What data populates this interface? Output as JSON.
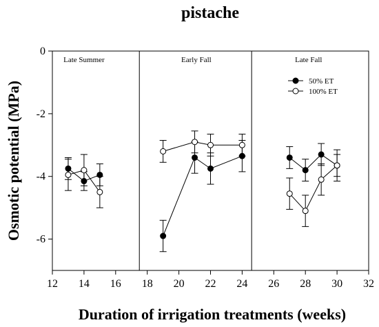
{
  "chart_data": {
    "type": "line",
    "title": "pistache",
    "xlabel": "Duration of irrigation treatments (weeks)",
    "ylabel": "Osmotic potential (MPa)",
    "xlim": [
      12,
      32
    ],
    "ylim": [
      -7,
      0
    ],
    "xticks": [
      12,
      14,
      16,
      18,
      20,
      22,
      24,
      26,
      28,
      30,
      32
    ],
    "yticks": [
      0,
      -2,
      -4,
      -6
    ],
    "panel_dividers": [
      17.5,
      24.6
    ],
    "panels": [
      {
        "label": "Late Summer",
        "x": 14.0
      },
      {
        "label": "Early Fall",
        "x": 21.1
      },
      {
        "label": "Late Fall",
        "x": 28.2
      }
    ],
    "legend_position": "upper-right of Late Fall panel",
    "series": [
      {
        "name": "50% ET",
        "marker": "filled-circle",
        "color": "#000000",
        "segments": [
          [
            {
              "x": 13,
              "y": -3.75,
              "err": 0.35
            },
            {
              "x": 14,
              "y": -4.15,
              "err": 0.3
            },
            {
              "x": 15,
              "y": -3.95,
              "err": 0.35
            }
          ],
          [
            {
              "x": 19,
              "y": -5.9,
              "err": 0.5
            },
            {
              "x": 21,
              "y": -3.4,
              "err": 0.5
            },
            {
              "x": 22,
              "y": -3.75,
              "err": 0.5
            },
            {
              "x": 24,
              "y": -3.35,
              "err": 0.5
            }
          ],
          [
            {
              "x": 27,
              "y": -3.4,
              "err": 0.35
            },
            {
              "x": 28,
              "y": -3.8,
              "err": 0.35
            },
            {
              "x": 29,
              "y": -3.3,
              "err": 0.35
            },
            {
              "x": 30,
              "y": -3.65,
              "err": 0.35
            }
          ]
        ]
      },
      {
        "name": "100% ET",
        "marker": "open-circle",
        "color": "#000000",
        "segments": [
          [
            {
              "x": 13,
              "y": -3.95,
              "err": 0.5
            },
            {
              "x": 14,
              "y": -3.8,
              "err": 0.5
            },
            {
              "x": 15,
              "y": -4.5,
              "err": 0.5
            }
          ],
          [
            {
              "x": 19,
              "y": -3.2,
              "err": 0.35
            },
            {
              "x": 21,
              "y": -2.9,
              "err": 0.35
            },
            {
              "x": 22,
              "y": -3.0,
              "err": 0.35
            },
            {
              "x": 24,
              "y": -3.0,
              "err": 0.35
            }
          ],
          [
            {
              "x": 27,
              "y": -4.55,
              "err": 0.5
            },
            {
              "x": 28,
              "y": -5.1,
              "err": 0.5
            },
            {
              "x": 29,
              "y": -4.1,
              "err": 0.5
            },
            {
              "x": 30,
              "y": -3.65,
              "err": 0.5
            }
          ]
        ]
      }
    ]
  }
}
